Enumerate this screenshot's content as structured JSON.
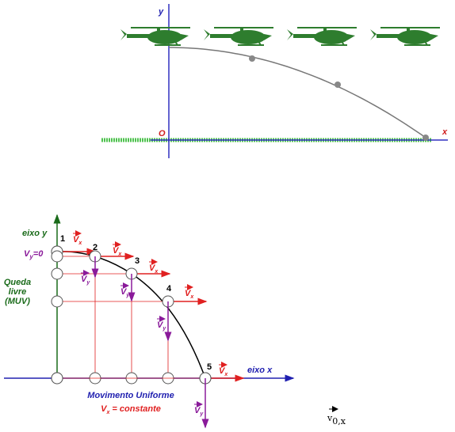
{
  "top_diagram": {
    "y_axis_label": "y",
    "origin_label": "O",
    "x_axis_label": "x"
  },
  "bottom_diagram": {
    "y_axis_label": "eixo y",
    "x_axis_label": "eixo x",
    "points": [
      "1",
      "2",
      "3",
      "4",
      "5"
    ],
    "vy_zero_label": {
      "symbol": "V",
      "subscript": "y",
      "suffix": "=0"
    },
    "free_fall_label": [
      "Queda",
      "livre",
      "(MUV)"
    ],
    "uniform_motion_label": "Movimento Uniforme",
    "vx_constant_label": {
      "symbol": "V",
      "subscript": "x",
      "suffix": " = constante"
    },
    "vx_label": {
      "symbol": "V",
      "subscript": "x"
    },
    "vy_label": {
      "symbol": "V",
      "subscript": "y"
    }
  },
  "formula": {
    "symbol": "v",
    "subscript": "0,x"
  }
}
